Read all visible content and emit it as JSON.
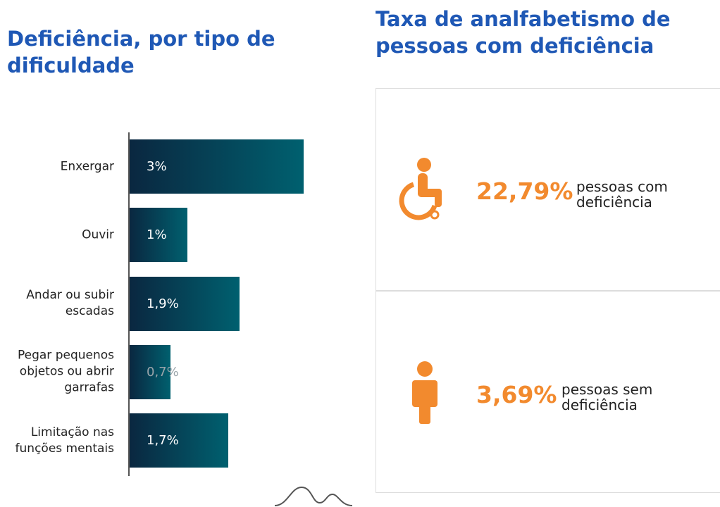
{
  "chart_data": {
    "type": "bar",
    "orientation": "horizontal",
    "title": "Deficiência, por tipo de dificuldade",
    "categories": [
      "Enxergar",
      "Ouvir",
      "Andar ou subir escadas",
      "Pegar pequenos objetos ou abrir garrafas",
      "Limitação nas funções mentais"
    ],
    "values": [
      3,
      1,
      1.9,
      0.7,
      1.7
    ],
    "value_labels": [
      "3%",
      "1%",
      "1,9%",
      "0,7%",
      "1,7%"
    ],
    "colors": [
      "#0a2740",
      "#00606f"
    ]
  },
  "stats": {
    "title": "Taxa de analfabetismo de pessoas com deficiência",
    "items": [
      {
        "value": "22,79%",
        "description": "pessoas com deficiência"
      },
      {
        "value": "3,69%",
        "description": "pessoas sem deficiência"
      }
    ]
  }
}
